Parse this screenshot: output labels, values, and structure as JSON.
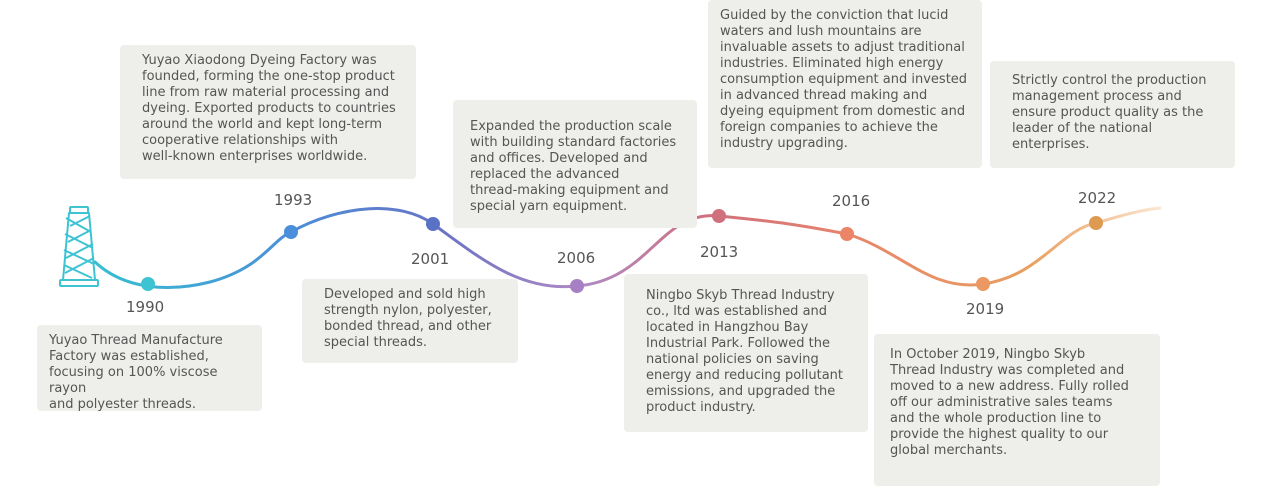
{
  "colors": {
    "gradient_stops": [
      "#35c0d0",
      "#4a90d8",
      "#6b73c4",
      "#b08ac4",
      "#d0707c",
      "#e8866a",
      "#e8a060",
      "#f2c49a"
    ],
    "card_bg": "#eeeeea",
    "text": "#555555"
  },
  "icon": "thread-spool-icon",
  "milestones": [
    {
      "year": "1990",
      "color": "#3ec3d3",
      "description": "Yuyao Thread Manufacture\nFactory was established,\nfocusing on 100% viscose rayon\nand polyester threads."
    },
    {
      "year": "1993",
      "color": "#4a8fdb",
      "description": "Yuyao Xiaodong Dyeing Factory was\nfounded, forming the one-stop product\nline from raw material processing and\ndyeing. Exported products to countries\naround the world and kept long-term\ncooperative relationships with\nwell-known enterprises worldwide."
    },
    {
      "year": "2001",
      "color": "#5a72c6",
      "description": "Developed and sold high\nstrength nylon, polyester,\nbonded thread, and other\nspecial threads."
    },
    {
      "year": "2006",
      "color": "#a77fc4",
      "description": "Expanded the production scale\nwith building standard factories\nand offices. Developed and\nreplaced the advanced\nthread-making equipment and\nspecial yarn equipment."
    },
    {
      "year": "2013",
      "color": "#d0707c",
      "description": "Ningbo Skyb Thread Industry\nco., ltd was established and\nlocated in Hangzhou Bay\nIndustrial Park. Followed the\nnational policies on saving\nenergy and reducing pollutant\nemissions, and upgraded the\nproduct industry."
    },
    {
      "year": "2016",
      "color": "#ec8468",
      "description": "Guided by the conviction that lucid\nwaters and lush mountains are\ninvaluable assets to adjust traditional\nindustries. Eliminated high energy\nconsumption equipment and invested\nin advanced thread making and\ndyeing equipment from domestic and\nforeign companies to achieve the\nindustry upgrading."
    },
    {
      "year": "2019",
      "color": "#eb9863",
      "description": "In October 2019, Ningbo Skyb\nThread Industry was completed and\nmoved to a new address. Fully rolled\noff our administrative sales teams\nand the whole production line to\nprovide the highest quality to our\nglobal merchants."
    },
    {
      "year": "2022",
      "color": "#df9a52",
      "description": "Strictly control the production\nmanagement process and\nensure product quality as the\nleader of the  national\nenterprises."
    }
  ]
}
